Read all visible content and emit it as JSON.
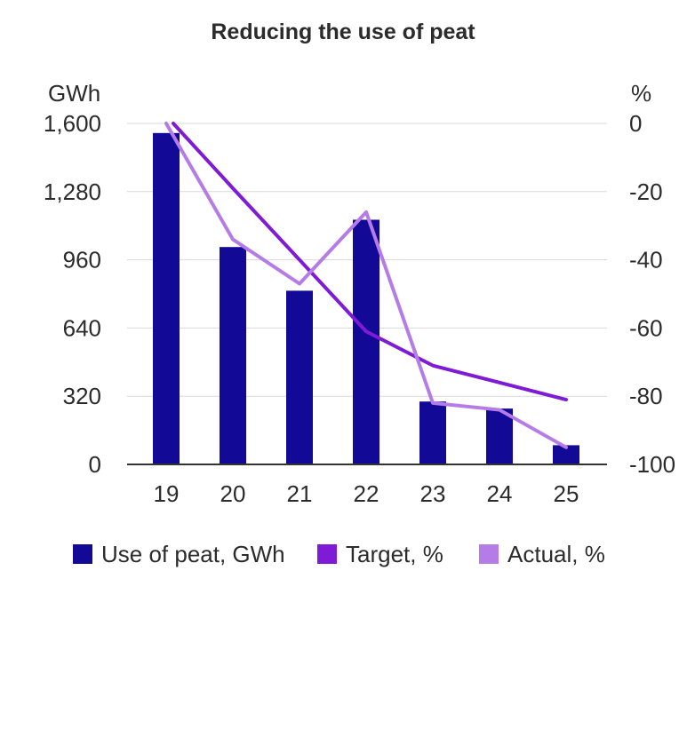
{
  "chart_data": {
    "type": "bar",
    "title": "Reducing the use of peat",
    "categories": [
      "19",
      "20",
      "21",
      "22",
      "23",
      "24",
      "25"
    ],
    "left_axis": {
      "unit": "GWh",
      "range": [
        0,
        1600
      ],
      "ticks": [
        "0",
        "320",
        "640",
        "960",
        "1,280",
        "1,600"
      ],
      "tick_values": [
        0,
        320,
        640,
        960,
        1280,
        1600
      ]
    },
    "right_axis": {
      "unit": "%",
      "range": [
        -100,
        0
      ],
      "ticks": [
        "-100",
        "-80",
        "-60",
        "-40",
        "-20",
        "0"
      ],
      "tick_values": [
        -100,
        -80,
        -60,
        -40,
        -20,
        0
      ]
    },
    "grid": true,
    "legend_position": "bottom",
    "series": [
      {
        "name": "Use of peat, GWh",
        "kind": "bar",
        "axis": "left",
        "color": "#120a96",
        "values": [
          1555,
          1020,
          815,
          1148,
          295,
          262,
          90
        ]
      },
      {
        "name": "Target, %",
        "kind": "line",
        "axis": "right",
        "color": "#7f1bd6",
        "values": [
          0,
          -19,
          -40,
          -61,
          -71,
          -76,
          -81
        ]
      },
      {
        "name": "Actual, %",
        "kind": "line",
        "axis": "right",
        "color": "#b57ce8",
        "values": [
          0,
          -34,
          -47,
          -26,
          -82,
          -84,
          -95
        ]
      }
    ]
  }
}
